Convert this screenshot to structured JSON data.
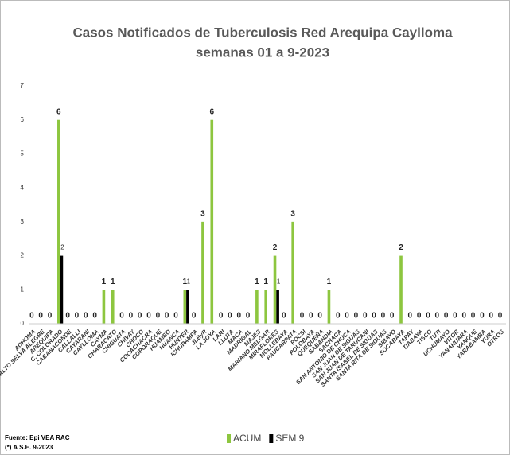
{
  "chart_data": {
    "type": "bar",
    "title": "Casos Notificados de Tuberculosis Red Arequipa Caylloma",
    "subtitle": "semanas 01 a 9-2023",
    "categories": [
      "ACHOMA",
      "ALTO SELVA ALEGRE",
      "AREQUIPA",
      "C. COLORADO",
      "CABANACONDE",
      "CALLALLI",
      "CAYARANI",
      "CAYLLOMA",
      "CAYMA",
      "CHARACATO",
      "CHIGUATA",
      "CHIVAY",
      "CHOCO",
      "COCACHACRA",
      "COPORAQUE",
      "HUAMBO",
      "HUANCA",
      "HUNTER",
      "ICHUPAMPA",
      "JLByR",
      "LA JOYA",
      "LARI",
      "LLUTA",
      "MACA",
      "MADRIGAL",
      "MAJES",
      "MARIANO MELGAR",
      "MIRAFLORES",
      "MOLLEBAYA",
      "PAUCARPATA",
      "POCSI",
      "POLOBAYA",
      "QUEQUEÑA",
      "SABANDIA",
      "SACHACA",
      "SAN ANTONIO DE CHUCA",
      "SAN JUAN DE SIGUAS",
      "SAN JUAN DE TARUCANI",
      "SANTA ISABEL DE SIGUAS",
      "SANTA RITA DE SIGUAS",
      "SIBAYO",
      "SOCABAYA",
      "TAPAY",
      "TIABAYA",
      "TISCO",
      "TUTI",
      "UCHUMAYO",
      "VITOR",
      "YANAHUARA",
      "YANQUE",
      "YARABAMBA",
      "YURA",
      "OTROS"
    ],
    "series": [
      {
        "name": "ACUM",
        "color": "#8dc63f",
        "values": [
          0,
          0,
          0,
          6,
          0,
          0,
          0,
          0,
          1,
          1,
          0,
          0,
          0,
          0,
          0,
          0,
          0,
          1,
          0,
          3,
          6,
          0,
          0,
          0,
          0,
          1,
          1,
          2,
          0,
          3,
          0,
          0,
          0,
          1,
          0,
          0,
          0,
          0,
          0,
          0,
          0,
          2,
          0,
          0,
          0,
          0,
          0,
          0,
          0,
          0,
          0,
          0,
          0
        ]
      },
      {
        "name": "SEM 9",
        "color": "#000000",
        "values": [
          null,
          null,
          null,
          2,
          null,
          null,
          null,
          null,
          null,
          null,
          null,
          null,
          null,
          null,
          null,
          null,
          null,
          1,
          null,
          null,
          null,
          null,
          null,
          null,
          null,
          null,
          null,
          1,
          null,
          null,
          null,
          null,
          null,
          null,
          null,
          null,
          null,
          null,
          null,
          null,
          null,
          null,
          null,
          null,
          null,
          null,
          null,
          null,
          null,
          null,
          null,
          null,
          null
        ]
      }
    ],
    "ylim": [
      0,
      7
    ],
    "yticks": [
      0,
      1,
      2,
      3,
      4,
      5,
      6,
      7
    ],
    "grid": false,
    "legend": "bottom",
    "notes": [
      "Fuente: Epi VEA RAC",
      "(*) A S.E. 9-2023"
    ]
  }
}
